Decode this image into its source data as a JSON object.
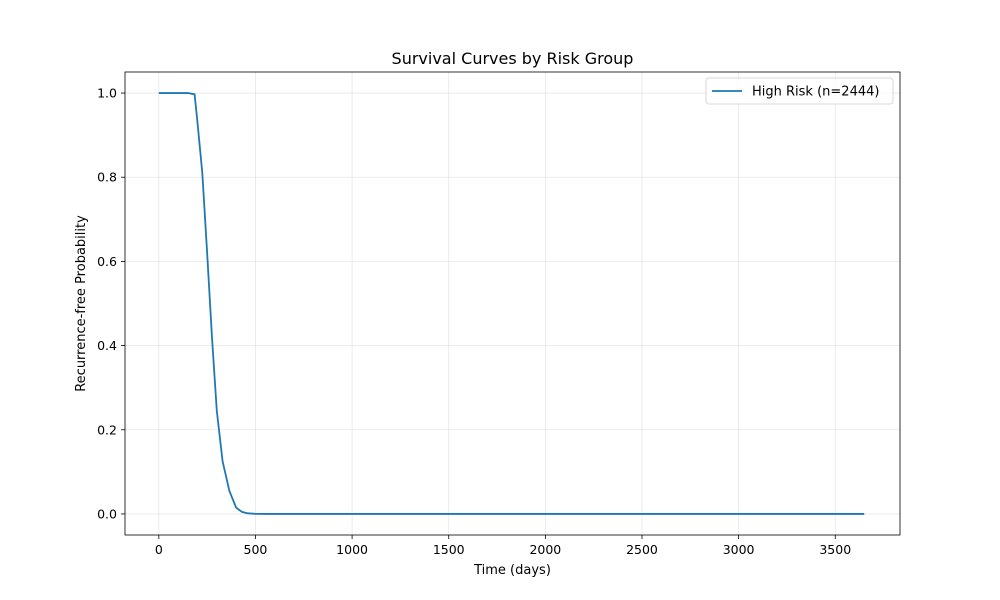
{
  "chart_data": {
    "type": "line",
    "title": "Survival Curves by Risk Group",
    "xlabel": "Time (days)",
    "ylabel": "Recurrence-free Probability",
    "xlim": [
      -175,
      3835
    ],
    "ylim": [
      -0.05,
      1.05
    ],
    "xticks": [
      0,
      500,
      1000,
      1500,
      2000,
      2500,
      3000,
      3500
    ],
    "xtick_labels": [
      "0",
      "500",
      "1000",
      "1500",
      "2000",
      "2500",
      "3000",
      "3500"
    ],
    "yticks": [
      0.0,
      0.2,
      0.4,
      0.6,
      0.8,
      1.0
    ],
    "ytick_labels": [
      "0.0",
      "0.2",
      "0.4",
      "0.6",
      "0.8",
      "1.0"
    ],
    "grid": true,
    "legend_position": "top-right",
    "series": [
      {
        "name": "High Risk (n=2444)",
        "color": "#1f77b4",
        "x": [
          0,
          50,
          100,
          150,
          185,
          200,
          225,
          250,
          275,
          300,
          330,
          365,
          400,
          430,
          460,
          500,
          550,
          600,
          1000,
          1500,
          2000,
          2500,
          3000,
          3500,
          3650
        ],
        "y": [
          1.0,
          1.0,
          1.0,
          1.0,
          0.997,
          0.93,
          0.81,
          0.62,
          0.42,
          0.245,
          0.125,
          0.055,
          0.015,
          0.005,
          0.0015,
          0.0003,
          0.0,
          0.0,
          0.0,
          0.0,
          0.0,
          0.0,
          0.0,
          0.0,
          0.0
        ]
      }
    ]
  }
}
